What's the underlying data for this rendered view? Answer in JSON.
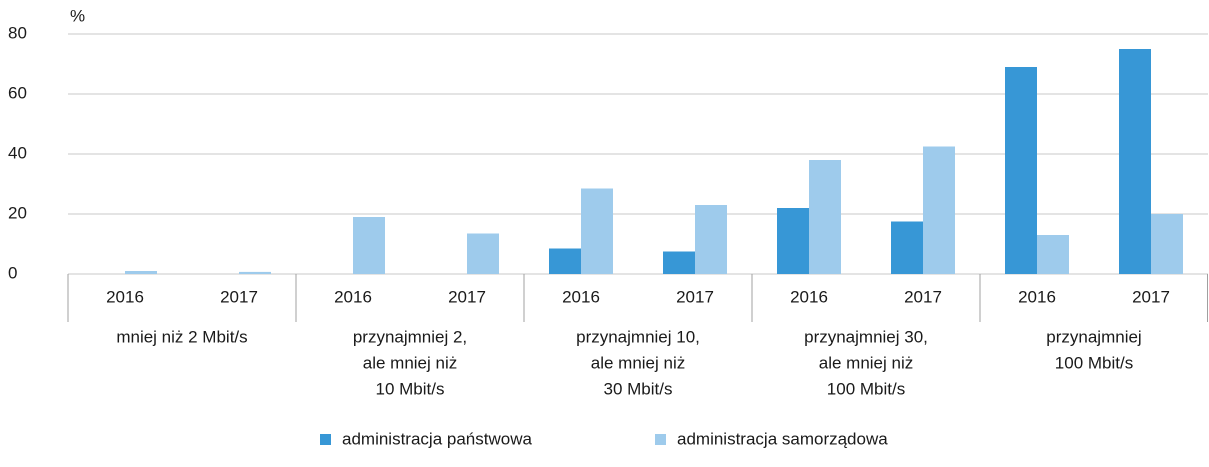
{
  "chart_data": {
    "type": "bar",
    "ylabel": "%",
    "categories": [
      "2016",
      "2017",
      "2016",
      "2017",
      "2016",
      "2017",
      "2016",
      "2017",
      "2016",
      "2017"
    ],
    "groups": [
      [
        "mniej niż 2 Mbit/s"
      ],
      [
        "przynajmniej 2,",
        "ale mniej niż",
        "10 Mbit/s"
      ],
      [
        "przynajmniej 10,",
        "ale mniej niż",
        "30 Mbit/s"
      ],
      [
        "przynajmniej 30,",
        "ale mniej niż",
        "100 Mbit/s"
      ],
      [
        "przynajmniej",
        "100 Mbit/s"
      ]
    ],
    "series": [
      {
        "name": "administracja państwowa",
        "color": "#3797d6",
        "values": [
          0,
          0,
          0,
          0,
          8.5,
          7.5,
          22,
          17.5,
          69,
          75
        ]
      },
      {
        "name": "administracja samorządowa",
        "color": "#9ecbec",
        "values": [
          1,
          0.7,
          19,
          13.5,
          28.5,
          23,
          38,
          42.5,
          13,
          20
        ]
      }
    ],
    "ylim": [
      0,
      80
    ],
    "yticks": [
      0,
      20,
      40,
      60,
      80
    ],
    "grid": true,
    "legend": "bottom"
  }
}
